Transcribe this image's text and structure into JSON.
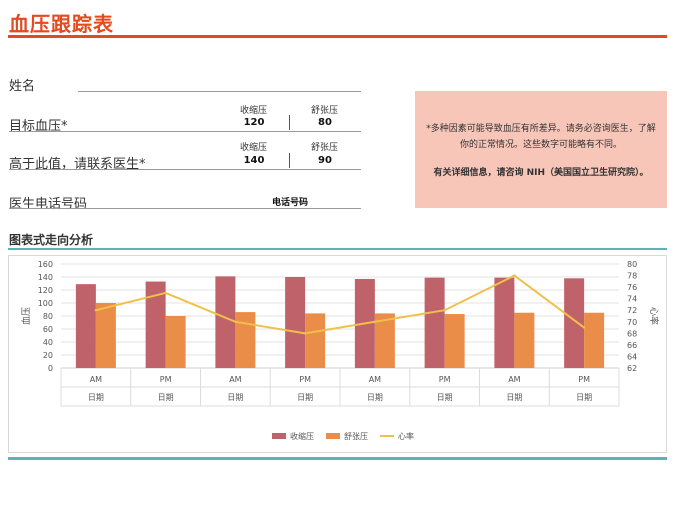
{
  "header": {
    "title": "血压跟踪表"
  },
  "form": {
    "name_label": "姓名",
    "target_label": "目标血压*",
    "contact_label": "高于此值，请联系医生*",
    "phone_label": "医生电话号码",
    "systolic_label": "收缩压",
    "diastolic_label": "舒张压",
    "target_systolic": "120",
    "target_diastolic": "80",
    "contact_systolic": "140",
    "contact_diastolic": "90",
    "phone_value": "电话号码"
  },
  "note": {
    "line1": "*多种因素可能导致血压有所差异。请务必咨询医生，了解",
    "line2": "你的正常情况。这些数字可能略有不同。",
    "line3": "有关详细信息，请咨询 NIH（美国国立卫生研究院）。"
  },
  "section": {
    "title": "图表式走向分析"
  },
  "chart_data": {
    "type": "bar",
    "categories": [
      "AM",
      "PM",
      "AM",
      "PM",
      "AM",
      "PM",
      "AM",
      "PM"
    ],
    "category_group_labels": [
      "日期",
      "日期",
      "日期",
      "日期",
      "日期",
      "日期",
      "日期",
      "日期"
    ],
    "series": [
      {
        "name": "收缩压",
        "type": "bar",
        "axis": "left",
        "color": "#c0626a",
        "values": [
          129,
          133,
          141,
          140,
          137,
          139,
          139,
          138
        ]
      },
      {
        "name": "舒张压",
        "type": "bar",
        "axis": "left",
        "color": "#e98d49",
        "values": [
          100,
          80,
          86,
          84,
          84,
          83,
          85,
          85
        ]
      },
      {
        "name": "心率",
        "type": "line",
        "axis": "right",
        "color": "#f0c04a",
        "values": [
          72,
          75,
          70,
          68,
          70,
          72,
          78,
          69
        ]
      }
    ],
    "ylabel": "血压",
    "y2label": "心率",
    "ylim": [
      0,
      160
    ],
    "yticks": [
      0,
      20,
      40,
      60,
      80,
      100,
      120,
      140,
      160
    ],
    "y2lim": [
      62,
      80
    ],
    "y2ticks": [
      62,
      64,
      66,
      68,
      70,
      72,
      74,
      76,
      78,
      80
    ],
    "grid": true,
    "legend": "bottom"
  }
}
